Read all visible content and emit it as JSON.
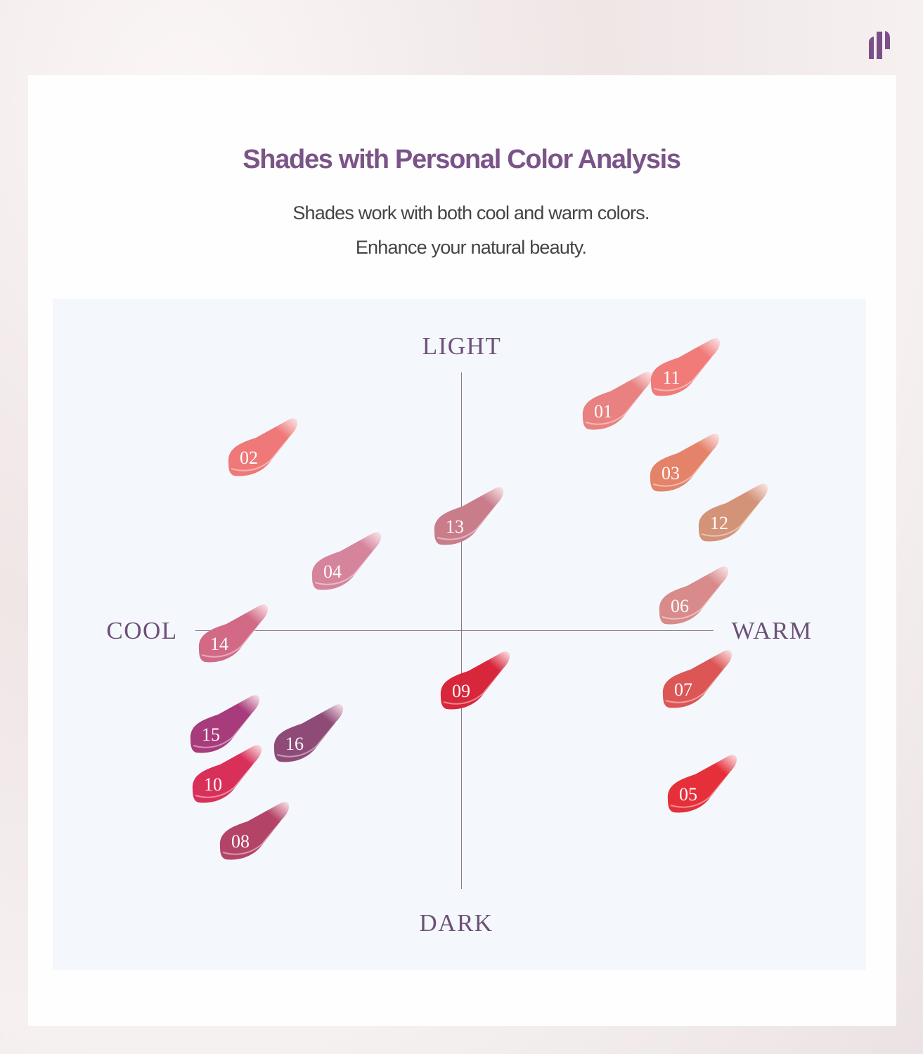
{
  "brand": {
    "logo": "brand-logo",
    "color": "#7a4f8a"
  },
  "header": {
    "title": "Shades with Personal Color Analysis",
    "subtitle_line1": "Shades work with both cool and warm colors.",
    "subtitle_line2": "Enhance your natural beauty."
  },
  "axes": {
    "top": "LIGHT",
    "bottom": "DARK",
    "left": "COOL",
    "right": "WARM"
  },
  "shades": [
    {
      "id": "01",
      "color": "#e8817f"
    },
    {
      "id": "11",
      "color": "#f07b78"
    },
    {
      "id": "02",
      "color": "#ef7878"
    },
    {
      "id": "03",
      "color": "#e5826a"
    },
    {
      "id": "12",
      "color": "#d39378"
    },
    {
      "id": "13",
      "color": "#c97d8b"
    },
    {
      "id": "04",
      "color": "#d6839c"
    },
    {
      "id": "06",
      "color": "#d98a8a"
    },
    {
      "id": "14",
      "color": "#d26a86"
    },
    {
      "id": "09",
      "color": "#d8263a"
    },
    {
      "id": "07",
      "color": "#dc5656"
    },
    {
      "id": "15",
      "color": "#a83b7b"
    },
    {
      "id": "16",
      "color": "#8f4b78"
    },
    {
      "id": "10",
      "color": "#d9305a"
    },
    {
      "id": "08",
      "color": "#b44467"
    },
    {
      "id": "05",
      "color": "#e5303a"
    }
  ]
}
